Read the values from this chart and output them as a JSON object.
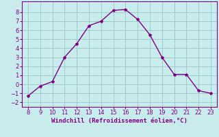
{
  "x": [
    8,
    9,
    10,
    11,
    12,
    13,
    14,
    15,
    16,
    17,
    18,
    19,
    20,
    21,
    22,
    23
  ],
  "y": [
    -1.3,
    -0.2,
    0.3,
    3.0,
    4.5,
    6.5,
    7.0,
    8.2,
    8.3,
    7.2,
    5.5,
    3.0,
    1.1,
    1.1,
    -0.7,
    -1.0
  ],
  "line_color": "#800080",
  "marker": "*",
  "marker_size": 3,
  "background_color": "#c8ecec",
  "grid_color": "#a0cccc",
  "xlabel": "Windchill (Refroidissement éolien,°C)",
  "xlabel_color": "#800080",
  "tick_color": "#800080",
  "ylim": [
    -2.5,
    9.2
  ],
  "xlim": [
    7.5,
    23.5
  ],
  "yticks": [
    -2,
    -1,
    0,
    1,
    2,
    3,
    4,
    5,
    6,
    7,
    8
  ],
  "xticks": [
    8,
    9,
    10,
    11,
    12,
    13,
    14,
    15,
    16,
    17,
    18,
    19,
    20,
    21,
    22,
    23
  ],
  "tick_fontsize": 6,
  "xlabel_fontsize": 6.5,
  "linewidth": 1.0
}
